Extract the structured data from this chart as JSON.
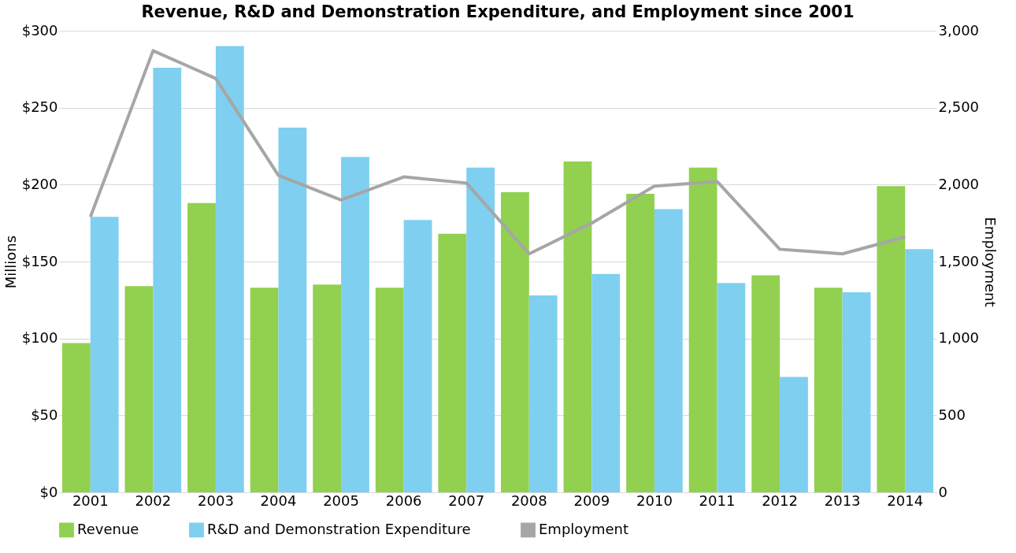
{
  "chart_data": {
    "type": "bar",
    "title": "Revenue, R&D and Demonstration Expenditure, and Employment since 2001",
    "ylabel": "Millions",
    "y2label": "Employment",
    "categories": [
      "2001",
      "2002",
      "2003",
      "2004",
      "2005",
      "2006",
      "2007",
      "2008",
      "2009",
      "2010",
      "2011",
      "2012",
      "2013",
      "2014"
    ],
    "series": [
      {
        "name": "Revenue",
        "color": "#92d050",
        "values": [
          97,
          134,
          188,
          133,
          135,
          133,
          168,
          195,
          215,
          194,
          211,
          141,
          133,
          199
        ]
      },
      {
        "name": "R&D and Demonstration Expenditure",
        "color": "#7fcff0",
        "values": [
          179,
          276,
          290,
          237,
          218,
          177,
          211,
          128,
          142,
          184,
          136,
          75,
          130,
          158
        ]
      },
      {
        "name": "Employment",
        "type": "line",
        "axis": "y2",
        "color": "#a6a6a6",
        "marker": "none",
        "values": [
          1790,
          2870,
          2690,
          2060,
          1900,
          2050,
          2010,
          1550,
          1750,
          1990,
          2020,
          1580,
          1550,
          1660
        ]
      }
    ],
    "ylim": [
      0,
      300
    ],
    "yticks": [
      {
        "value": 0,
        "label": "$0"
      },
      {
        "value": 50,
        "label": "$50"
      },
      {
        "value": 100,
        "label": "$100"
      },
      {
        "value": 150,
        "label": "$150"
      },
      {
        "value": 200,
        "label": "$200"
      },
      {
        "value": 250,
        "label": "$250"
      },
      {
        "value": 300,
        "label": "$300"
      }
    ],
    "y2lim": [
      0,
      3000
    ],
    "y2ticks": [
      0,
      {
        "value": 500,
        "label": "500"
      },
      {
        "value": 1000,
        "label": "1,000"
      },
      {
        "value": 1500,
        "label": "1,500"
      },
      {
        "value": 2000,
        "label": "2,000"
      },
      {
        "value": 2500,
        "label": "2,500"
      },
      {
        "value": 3000,
        "label": "3,000"
      }
    ],
    "grid": "y",
    "legend": "bottom"
  }
}
